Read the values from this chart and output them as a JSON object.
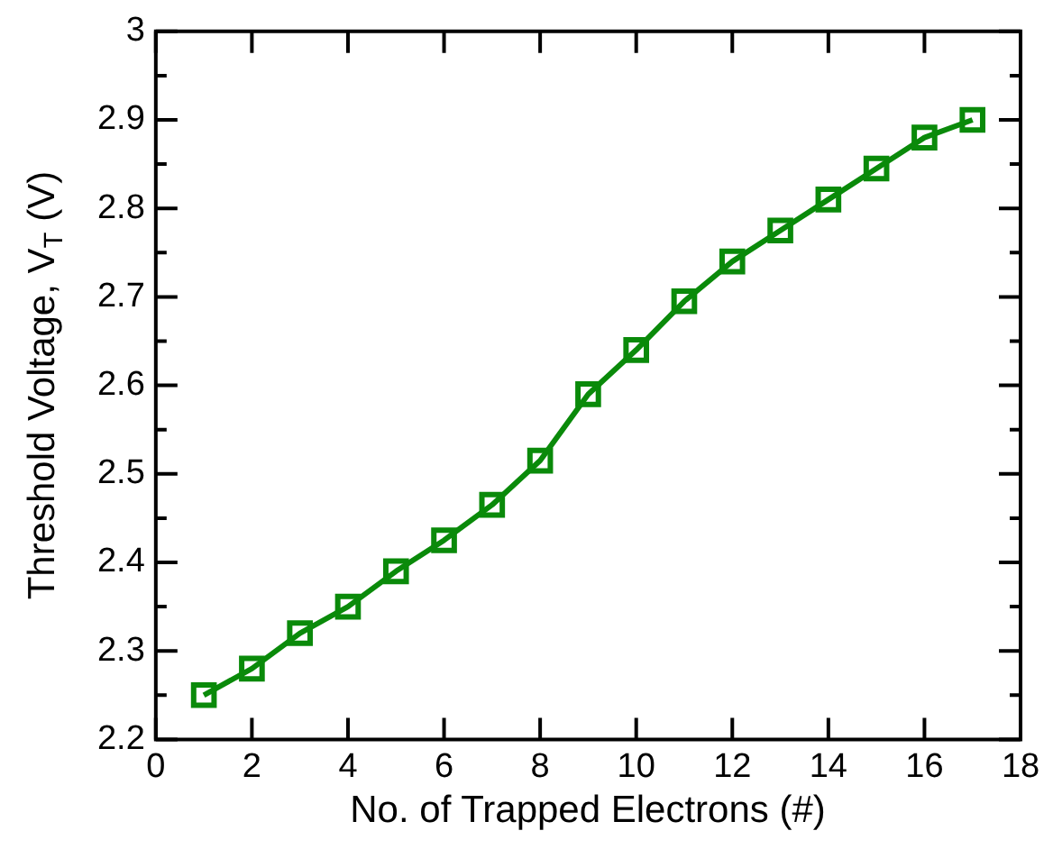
{
  "chart_data": {
    "type": "line",
    "xlabel": "No. of Trapped Electrons (#)",
    "ylabel": "Threshold Voltage, V$_{T}$ (V)",
    "x": [
      1,
      2,
      3,
      4,
      5,
      6,
      7,
      8,
      9,
      10,
      11,
      12,
      13,
      14,
      15,
      16,
      17
    ],
    "series": [
      {
        "color": "#0a8a0a",
        "values": [
          2.25,
          2.28,
          2.32,
          2.35,
          2.39,
          2.425,
          2.465,
          2.515,
          2.59,
          2.64,
          2.695,
          2.74,
          2.775,
          2.81,
          2.845,
          2.88,
          2.9
        ]
      }
    ],
    "xlim": [
      0,
      18
    ],
    "xticks": [
      0,
      2,
      4,
      6,
      8,
      10,
      12,
      14,
      16,
      18
    ],
    "ylim": [
      2.2,
      3
    ],
    "yticks": [
      2.2,
      {
        "value": 2.25,
        "label": null
      },
      2.3,
      {
        "value": 2.35,
        "label": null
      },
      2.4,
      {
        "value": 2.45,
        "label": null
      },
      2.5,
      {
        "value": 2.55,
        "label": null
      },
      2.6,
      {
        "value": 2.65,
        "label": null
      },
      2.7,
      {
        "value": 2.75,
        "label": null
      },
      2.8,
      {
        "value": 2.85,
        "label": null
      },
      2.9,
      {
        "value": 2.95,
        "label": null
      },
      3
    ],
    "grid": false,
    "legend": false,
    "marker": "square",
    "line_style": "solid"
  }
}
